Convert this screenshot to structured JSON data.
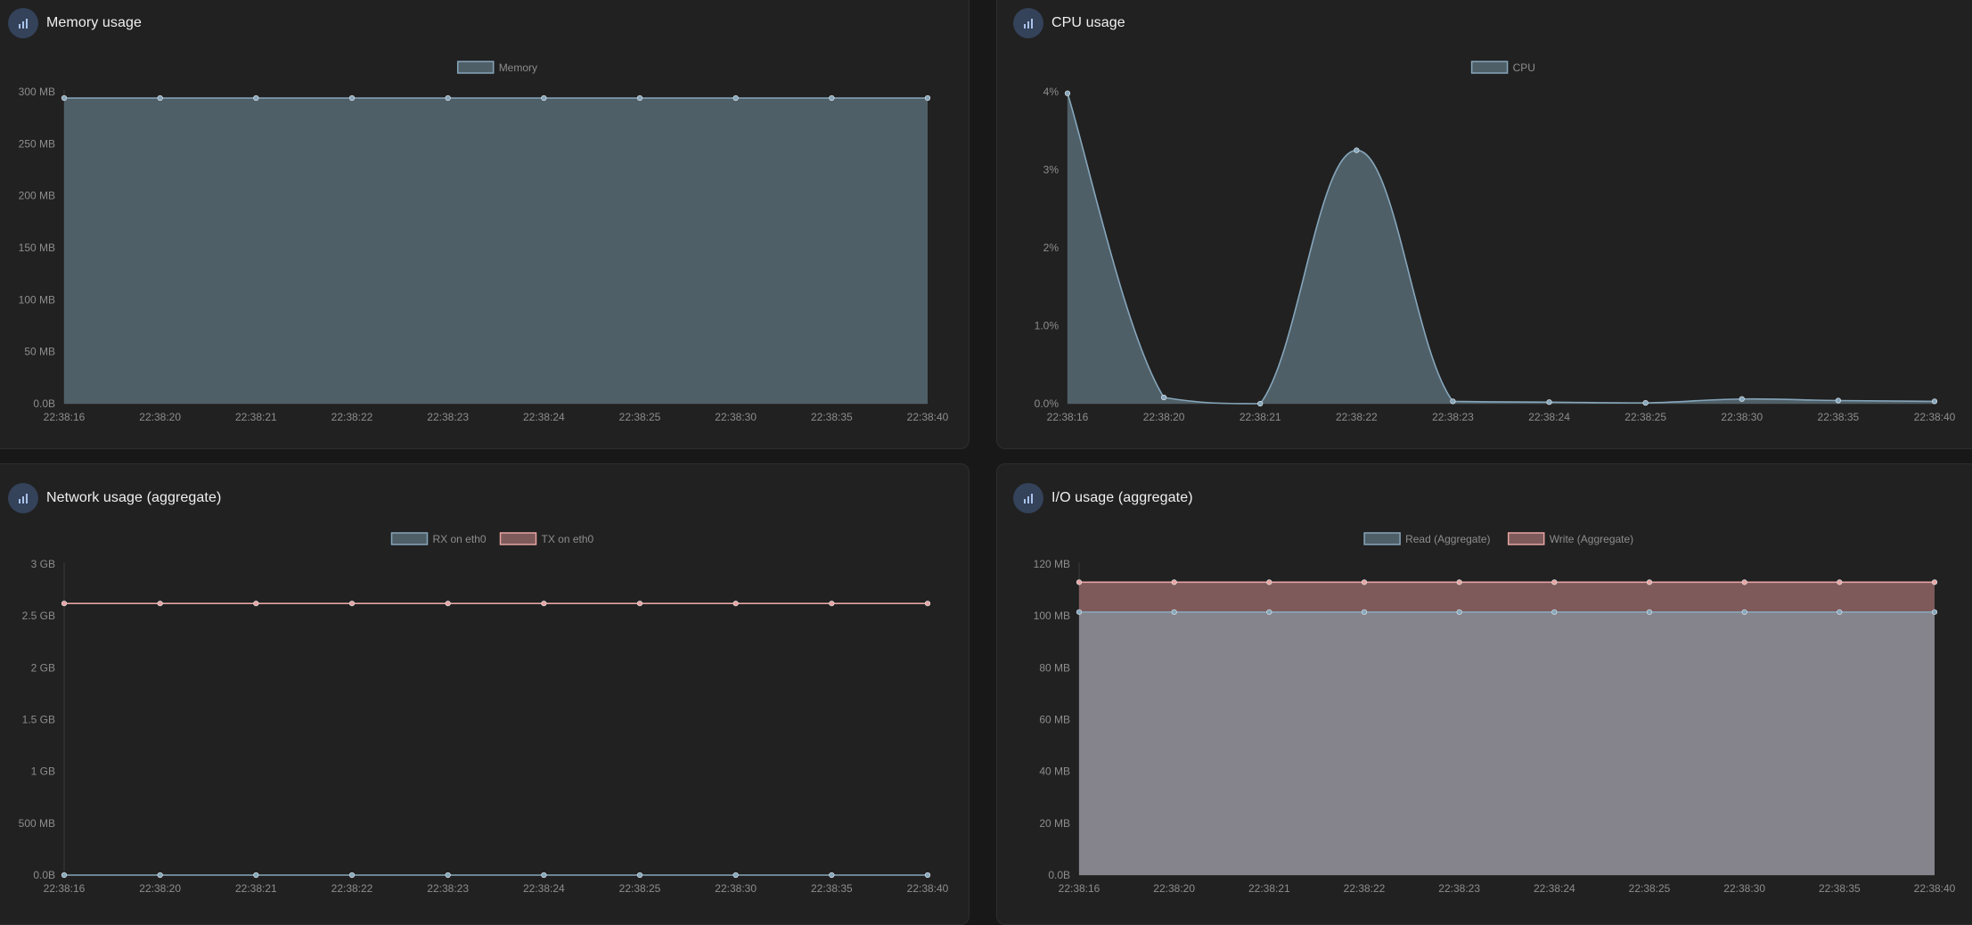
{
  "colors": {
    "page_bg": "#181818",
    "panel_bg": "#212121",
    "icon_bg": "#34425a",
    "icon_fg": "#a9c3ea",
    "text_muted": "#8d8d8d",
    "title_text": "#f0f0f0",
    "blue_stroke": "#86a6bb",
    "blue_fill": "#4f5f67",
    "red_stroke": "#e6a4a2",
    "red_fill": "#7e5a5b",
    "io_read_fill": "#85838b"
  },
  "panels": {
    "memory": {
      "title": "Memory usage",
      "icon": "bar-chart-icon"
    },
    "cpu": {
      "title": "CPU usage",
      "icon": "bar-chart-icon"
    },
    "network": {
      "title": "Network usage (aggregate)",
      "icon": "bar-chart-icon"
    },
    "io": {
      "title": "I/O usage (aggregate)",
      "icon": "bar-chart-icon"
    }
  },
  "chart_data": [
    {
      "id": "memory",
      "type": "area",
      "title": "",
      "categories": [
        "22:38:16",
        "22:38:20",
        "22:38:21",
        "22:38:22",
        "22:38:23",
        "22:38:24",
        "22:38:25",
        "22:38:30",
        "22:38:35",
        "22:38:40"
      ],
      "y_ticks": [
        "0.0B",
        "50 MB",
        "100 MB",
        "150 MB",
        "200 MB",
        "250 MB",
        "300 MB"
      ],
      "ylim": [
        0,
        300
      ],
      "y_unit": "MB",
      "grid": false,
      "legend_position": "top-center",
      "series": [
        {
          "name": "Memory",
          "values": [
            294,
            294,
            294,
            294,
            294,
            294,
            294,
            294,
            294,
            294
          ],
          "color": "blue"
        }
      ]
    },
    {
      "id": "cpu",
      "type": "area",
      "title": "",
      "categories": [
        "22:38:16",
        "22:38:20",
        "22:38:21",
        "22:38:22",
        "22:38:23",
        "22:38:24",
        "22:38:25",
        "22:38:30",
        "22:38:35",
        "22:38:40"
      ],
      "y_ticks": [
        "0.0%",
        "1.0%",
        "2%",
        "3%",
        "4%"
      ],
      "ylim": [
        0,
        4
      ],
      "y_unit": "%",
      "grid": false,
      "legend_position": "top-center",
      "series": [
        {
          "name": "CPU",
          "values": [
            3.98,
            0.08,
            0.0,
            3.25,
            0.03,
            0.02,
            0.01,
            0.06,
            0.04,
            0.03
          ],
          "color": "blue"
        }
      ]
    },
    {
      "id": "network",
      "type": "line",
      "title": "",
      "categories": [
        "22:38:16",
        "22:38:20",
        "22:38:21",
        "22:38:22",
        "22:38:23",
        "22:38:24",
        "22:38:25",
        "22:38:30",
        "22:38:35",
        "22:38:40"
      ],
      "y_ticks": [
        "0.0B",
        "500 MB",
        "1 GB",
        "1.5 GB",
        "2 GB",
        "2.5 GB",
        "3 GB"
      ],
      "ylim": [
        0,
        3
      ],
      "y_unit": "GB",
      "grid": false,
      "legend_position": "top-center",
      "series": [
        {
          "name": "RX on eth0",
          "values": [
            0,
            0,
            0,
            0,
            0,
            0,
            0,
            0,
            0,
            0
          ],
          "color": "blue"
        },
        {
          "name": "TX on eth0",
          "values": [
            2.62,
            2.62,
            2.62,
            2.62,
            2.62,
            2.62,
            2.62,
            2.62,
            2.62,
            2.62
          ],
          "color": "red"
        }
      ]
    },
    {
      "id": "io",
      "type": "area",
      "title": "",
      "categories": [
        "22:38:16",
        "22:38:20",
        "22:38:21",
        "22:38:22",
        "22:38:23",
        "22:38:24",
        "22:38:25",
        "22:38:30",
        "22:38:35",
        "22:38:40"
      ],
      "y_ticks": [
        "0.0B",
        "20 MB",
        "40 MB",
        "60 MB",
        "80 MB",
        "100 MB",
        "120 MB"
      ],
      "ylim": [
        0,
        120
      ],
      "y_unit": "MB",
      "grid": false,
      "legend_position": "top-center",
      "series": [
        {
          "name": "Read (Aggregate)",
          "values": [
            101.5,
            101.5,
            101.5,
            101.5,
            101.5,
            101.5,
            101.5,
            101.5,
            101.5,
            101.5
          ],
          "color": "blue"
        },
        {
          "name": "Write (Aggregate)",
          "values": [
            113,
            113,
            113,
            113,
            113,
            113,
            113,
            113,
            113,
            113
          ],
          "color": "red"
        }
      ]
    }
  ]
}
